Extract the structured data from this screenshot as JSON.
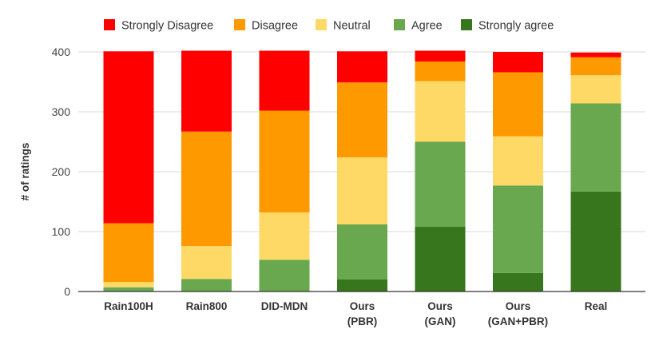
{
  "chart_data": {
    "type": "bar",
    "stacked": true,
    "categories": [
      [
        "Rain100H"
      ],
      [
        "Rain800"
      ],
      [
        "DID-MDN"
      ],
      [
        "Ours",
        "(PBR)"
      ],
      [
        "Ours",
        "(GAN)"
      ],
      [
        "Ours",
        "(GAN+PBR)"
      ],
      [
        "Real"
      ]
    ],
    "series": [
      {
        "name": "Strongly agree",
        "color": "#38761d",
        "values": [
          1,
          0,
          0,
          20,
          108,
          31,
          167
        ]
      },
      {
        "name": "Agree",
        "color": "#6aa84f",
        "values": [
          6,
          21,
          53,
          92,
          142,
          146,
          147
        ]
      },
      {
        "name": "Neutral",
        "color": "#ffd966",
        "values": [
          9,
          55,
          79,
          112,
          101,
          82,
          47
        ]
      },
      {
        "name": "Disagree",
        "color": "#ff9900",
        "values": [
          98,
          191,
          170,
          125,
          33,
          107,
          30
        ]
      },
      {
        "name": "Strongly Disagree",
        "color": "#ff0000",
        "values": [
          287,
          135,
          100,
          52,
          18,
          34,
          8
        ]
      }
    ],
    "legend_order": [
      "Strongly Disagree",
      "Disagree",
      "Neutral",
      "Agree",
      "Strongly agree"
    ],
    "legend_position": "top",
    "title": "",
    "xlabel": "",
    "ylabel": "# of ratings",
    "ylim": [
      0,
      400
    ],
    "yticks": [
      0,
      100,
      200,
      300,
      400
    ],
    "grid": true
  }
}
